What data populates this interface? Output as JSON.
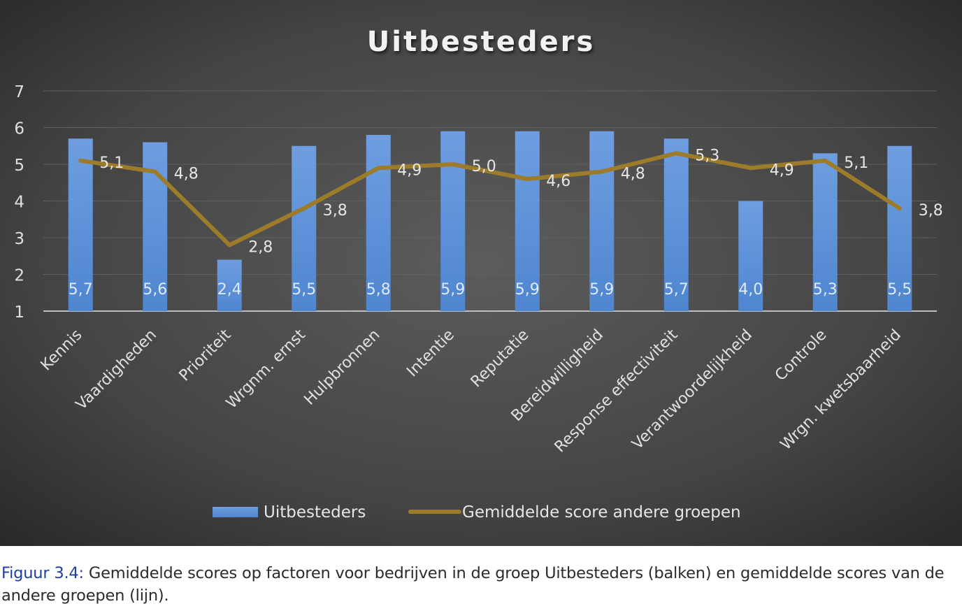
{
  "chart_data": {
    "type": "bar",
    "title": "Uitbesteders",
    "xlabel": "",
    "ylabel": "",
    "ylim": [
      1,
      7
    ],
    "yticks": [
      1,
      2,
      3,
      4,
      5,
      6,
      7
    ],
    "grid": true,
    "legend_position": "bottom",
    "categories": [
      "Kennis",
      "Vaardigheden",
      "Prioriteit",
      "Wrgnm. ernst",
      "Hulpbronnen",
      "Intentie",
      "Reputatie",
      "Bereidwilligheid",
      "Response effectiviteit",
      "Verantwoordelijkheid",
      "Controle",
      "Wrgn. kwetsbaarheid"
    ],
    "series": [
      {
        "name": "Uitbesteders",
        "type": "bar",
        "color": "#5b8fd6",
        "values": [
          5.7,
          5.6,
          2.4,
          5.5,
          5.8,
          5.9,
          5.9,
          5.9,
          5.7,
          4.0,
          5.3,
          5.5
        ],
        "labels": [
          "5,7",
          "5,6",
          "2,4",
          "5,5",
          "5,8",
          "5,9",
          "5,9",
          "5,9",
          "5,7",
          "4,0",
          "5,3",
          "5,5"
        ]
      },
      {
        "name": "Gemiddelde score andere groepen",
        "type": "line",
        "color": "#9c7c2a",
        "values": [
          5.1,
          4.8,
          2.8,
          3.8,
          4.9,
          5.0,
          4.6,
          4.8,
          5.3,
          4.9,
          5.1,
          3.8
        ],
        "labels": [
          "5,1",
          "4,8",
          "2,8",
          "3,8",
          "4,9",
          "5,0",
          "4,6",
          "4,8",
          "5,3",
          "4,9",
          "5,1",
          "3,8"
        ]
      }
    ]
  },
  "caption": {
    "label": "Figuur 3.4:",
    "text": " Gemiddelde scores op factoren voor bedrijven in de groep Uitbesteders (balken) en gemiddelde scores van de andere groepen (lijn)."
  }
}
